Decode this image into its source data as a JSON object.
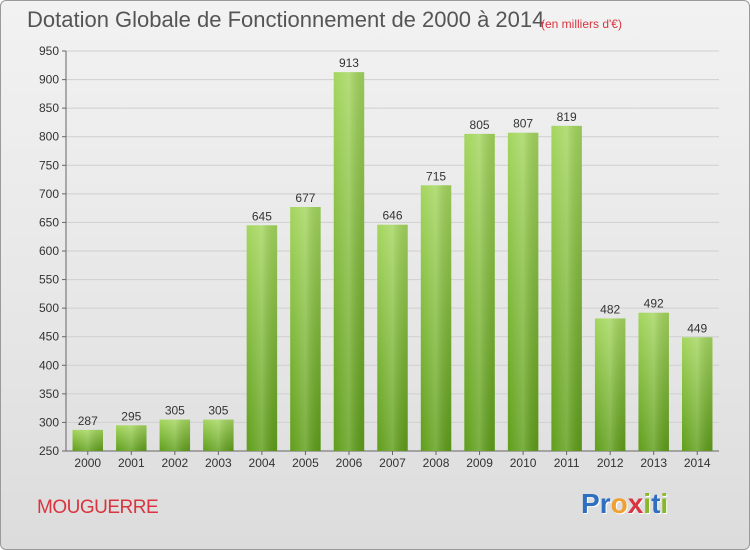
{
  "title": "Dotation Globale de Fonctionnement de 2000 à 2014",
  "subtitle": "(en milliers d'€)",
  "city": "MOUGUERRE",
  "logo": {
    "letters": [
      "P",
      "r",
      "o",
      "x",
      "i",
      "t",
      "i"
    ],
    "colors": [
      "#2e6fc0",
      "#2e6fc0",
      "#f0a030",
      "#d9343f",
      "#88b828",
      "#2e6fc0",
      "#88b828"
    ]
  },
  "colors": {
    "bar_top": "#a4d65e",
    "bar_bottom": "#5f9e1a",
    "grid": "#cfcfcf",
    "axis": "#666666",
    "text": "#333333"
  },
  "chart_data": {
    "type": "bar",
    "categories": [
      "2000",
      "2001",
      "2002",
      "2003",
      "2004",
      "2005",
      "2006",
      "2007",
      "2008",
      "2009",
      "2010",
      "2011",
      "2012",
      "2013",
      "2014"
    ],
    "values": [
      287,
      295,
      305,
      305,
      645,
      677,
      913,
      646,
      715,
      805,
      807,
      819,
      482,
      492,
      449
    ],
    "title": "Dotation Globale de Fonctionnement de 2000 à 2014",
    "ylim": [
      250,
      950
    ],
    "yticks": [
      250,
      300,
      350,
      400,
      450,
      500,
      550,
      600,
      650,
      700,
      750,
      800,
      850,
      900,
      950
    ],
    "grid": true,
    "data_labels": true
  }
}
